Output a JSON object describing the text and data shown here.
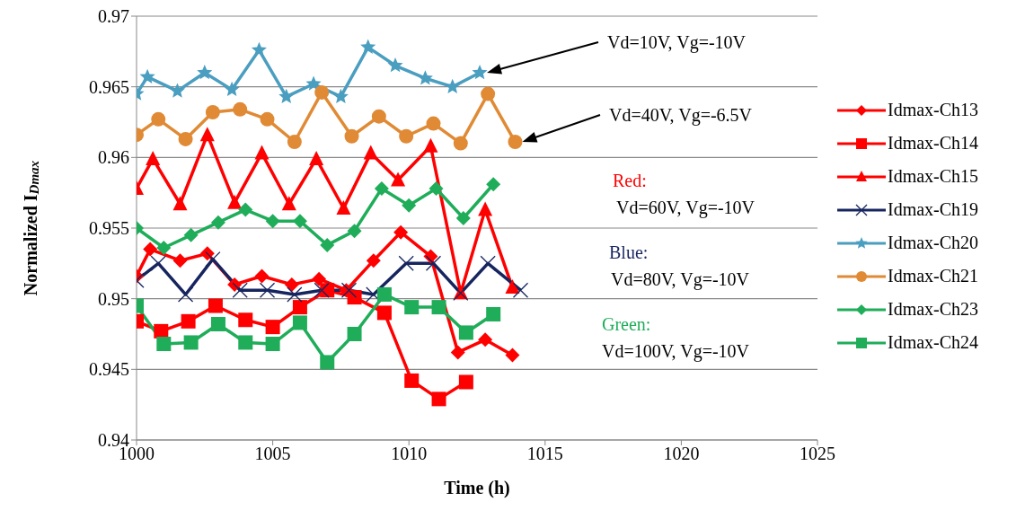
{
  "chart_data": {
    "type": "line",
    "xlabel": "Time (h)",
    "ylabel": "Normalized I$_{Dmax}$",
    "xlim": [
      1000,
      1025
    ],
    "xticks": [
      1000,
      1005,
      1010,
      1015,
      1020,
      1025
    ],
    "ylim": [
      0.94,
      0.97
    ],
    "yticks": [
      0.94,
      0.945,
      0.95,
      0.955,
      0.96,
      0.965,
      0.97
    ],
    "grid": "y",
    "legend": "right",
    "series": [
      {
        "name": "Idmax-Ch13",
        "color": "#ff0000",
        "marker": "diamond",
        "x": [
          1000,
          1000.5,
          1001.6,
          1002.6,
          1003.6,
          1004.6,
          1005.7,
          1006.7,
          1007.7,
          1008.7,
          1009.7,
          1010.8,
          1011.8,
          1012.8,
          1013.8
        ],
        "values": [
          0.9516,
          0.9535,
          0.9527,
          0.9532,
          0.951,
          0.9516,
          0.951,
          0.9514,
          0.9506,
          0.9527,
          0.9547,
          0.953,
          0.9462,
          0.9471,
          0.946
        ]
      },
      {
        "name": "Idmax-Ch14",
        "color": "#ff0000",
        "marker": "square",
        "x": [
          1000,
          1000.9,
          1001.9,
          1002.9,
          1004,
          1005,
          1006,
          1007,
          1008,
          1009.1,
          1010.1,
          1011.1,
          1012.1
        ],
        "values": [
          0.9484,
          0.9477,
          0.9484,
          0.9495,
          0.9485,
          0.948,
          0.9494,
          0.9506,
          0.9501,
          0.949,
          0.9442,
          0.9429,
          0.9441
        ]
      },
      {
        "name": "Idmax-Ch15",
        "color": "#ff0000",
        "marker": "triangle",
        "x": [
          1000,
          1000.6,
          1001.6,
          1002.6,
          1003.6,
          1004.6,
          1005.6,
          1006.6,
          1007.6,
          1008.6,
          1009.6,
          1010.8,
          1011.9,
          1012.8,
          1013.8
        ],
        "values": [
          0.9578,
          0.9599,
          0.9567,
          0.9616,
          0.9568,
          0.9603,
          0.9567,
          0.9599,
          0.9564,
          0.9603,
          0.9584,
          0.9608,
          0.9504,
          0.9563,
          0.9508
        ]
      },
      {
        "name": "Idmax-Ch19",
        "color": "#17255f",
        "marker": "cross",
        "x": [
          1000,
          1000.8,
          1001.8,
          1002.8,
          1003.8,
          1004.8,
          1005.8,
          1006.8,
          1007.8,
          1008.7,
          1009.9,
          1010.9,
          1011.9,
          1012.9,
          1014.1
        ],
        "values": [
          0.9513,
          0.9525,
          0.9503,
          0.9528,
          0.9506,
          0.9506,
          0.9503,
          0.9506,
          0.9506,
          0.9503,
          0.9525,
          0.9525,
          0.9504,
          0.9525,
          0.9506
        ]
      },
      {
        "name": "Idmax-Ch20",
        "color": "#4a9ec0",
        "marker": "star",
        "x": [
          1000,
          1000.4,
          1001.5,
          1002.5,
          1003.5,
          1004.5,
          1005.5,
          1006.5,
          1007.5,
          1008.5,
          1009.5,
          1010.6,
          1011.6,
          1012.6
        ],
        "values": [
          0.9645,
          0.9657,
          0.9647,
          0.966,
          0.9648,
          0.9676,
          0.9643,
          0.9652,
          0.9643,
          0.9678,
          0.9665,
          0.9656,
          0.965,
          0.966
        ]
      },
      {
        "name": "Idmax-Ch21",
        "color": "#e08a35",
        "marker": "circle",
        "x": [
          1000,
          1000.8,
          1001.8,
          1002.8,
          1003.8,
          1004.8,
          1005.8,
          1006.8,
          1007.9,
          1008.9,
          1009.9,
          1010.9,
          1011.9,
          1012.9,
          1013.9
        ],
        "values": [
          0.9616,
          0.9627,
          0.9613,
          0.9632,
          0.9634,
          0.9627,
          0.9611,
          0.9646,
          0.9615,
          0.9629,
          0.9615,
          0.9624,
          0.961,
          0.9645,
          0.9611
        ]
      },
      {
        "name": "Idmax-Ch23",
        "color": "#1fad5a",
        "marker": "diamond",
        "x": [
          1000,
          1001,
          1002,
          1003,
          1004,
          1005,
          1006,
          1007,
          1008,
          1009,
          1010,
          1011,
          1012,
          1013.1
        ],
        "values": [
          0.955,
          0.9536,
          0.9545,
          0.9554,
          0.9563,
          0.9555,
          0.9555,
          0.9538,
          0.9548,
          0.9578,
          0.9566,
          0.9578,
          0.9557,
          0.9581
        ]
      },
      {
        "name": "Idmax-Ch24",
        "color": "#1fad5a",
        "marker": "square",
        "x": [
          1000,
          1001,
          1002,
          1003,
          1004,
          1005,
          1006,
          1007,
          1008,
          1009.1,
          1010.1,
          1011.1,
          1012.1,
          1013.1
        ],
        "values": [
          0.9495,
          0.9468,
          0.9469,
          0.9482,
          0.9469,
          0.9468,
          0.9483,
          0.9455,
          0.9475,
          0.9503,
          0.9494,
          0.9494,
          0.9476,
          0.9489
        ]
      }
    ],
    "annotations": [
      "Vd=10V, Vg=-10V",
      "Vd=40V, Vg=-6.5V",
      "Red:",
      "Vd=60V, Vg=-10V",
      "Blue:",
      "Vd=80V, Vg=-10V",
      "Green:",
      "Vd=100V, Vg=-10V"
    ]
  }
}
